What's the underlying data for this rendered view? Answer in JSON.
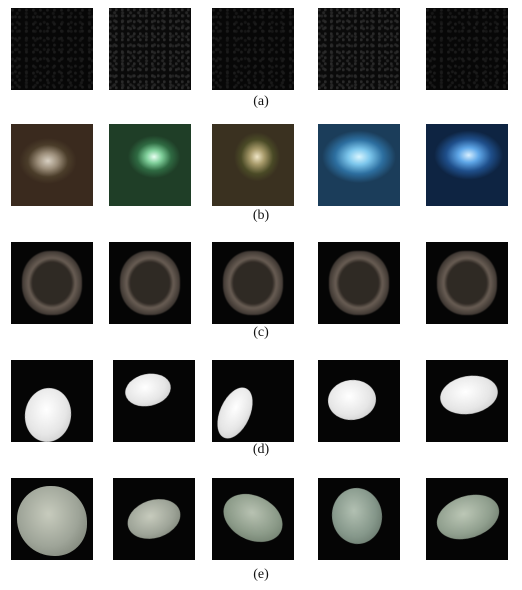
{
  "rows": [
    {
      "label": "(a)"
    },
    {
      "label": "(b)"
    },
    {
      "label": "(c)"
    },
    {
      "label": "(d)"
    },
    {
      "label": "(e)"
    }
  ]
}
